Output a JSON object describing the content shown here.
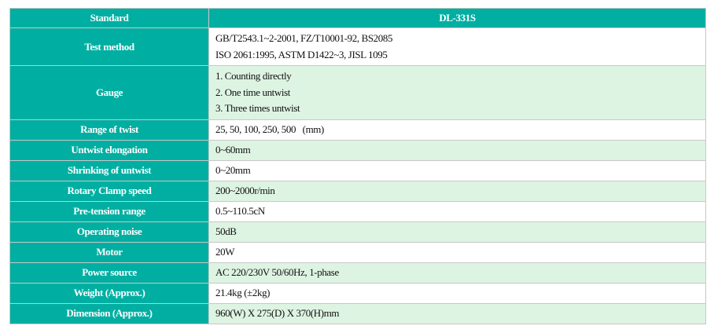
{
  "header": {
    "label": "Standard",
    "value": "DL-331S"
  },
  "rows": [
    {
      "label": "Test method",
      "lines": [
        "GB/T2543.1~2-2001, FZ/T10001-92, BS2085",
        "ISO 2061:1995, ASTM D1422~3, JISL 1095"
      ]
    },
    {
      "label": "Gauge",
      "lines": [
        "1. Counting directly",
        "2. One time untwist",
        "3. Three times untwist"
      ]
    },
    {
      "label": "Range of twist",
      "lines": [
        "25, 50, 100, 250, 500   (mm)"
      ]
    },
    {
      "label": "Untwist elongation",
      "lines": [
        "0~60mm"
      ]
    },
    {
      "label": "Shrinking of untwist",
      "lines": [
        "0~20mm"
      ]
    },
    {
      "label": "Rotary Clamp speed",
      "lines": [
        "200~2000r/min"
      ]
    },
    {
      "label": "Pre-tension range",
      "lines": [
        "0.5~110.5cN"
      ]
    },
    {
      "label": "Operating noise",
      "lines": [
        "50dB"
      ]
    },
    {
      "label": "Motor",
      "lines": [
        "20W"
      ]
    },
    {
      "label": "Power source",
      "lines": [
        "AC 220/230V 50/60Hz, 1-phase"
      ]
    },
    {
      "label": "Weight (Approx.)",
      "lines": [
        "21.4kg (±2kg)"
      ]
    },
    {
      "label": "Dimension (Approx.)",
      "lines": [
        "960(W) X 275(D) X 370(H)mm"
      ]
    }
  ],
  "colors": {
    "header_bg": "#00AFA2",
    "alt_row_bg": "#DEF4E3",
    "row_bg": "#FFFFFF"
  }
}
